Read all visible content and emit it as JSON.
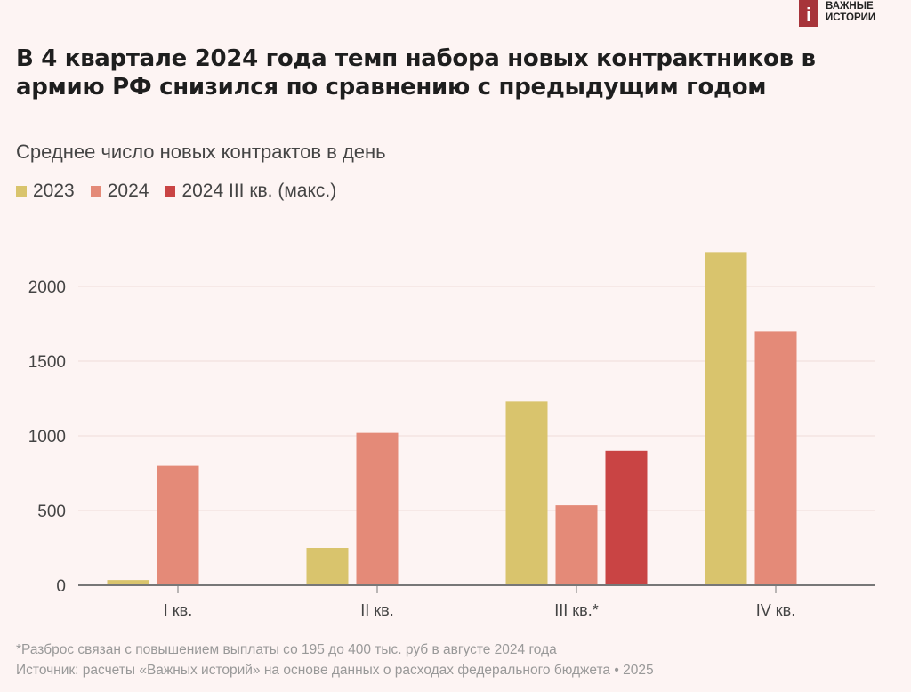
{
  "logo": {
    "mark": "i",
    "line1": "ВАЖНЫЕ",
    "line2": "ИСТОРИИ"
  },
  "colors": {
    "background": "#fdf4f3",
    "y2023": "#d9c46d",
    "y2024": "#e48a78",
    "y2024q3max": "#c94444",
    "grid": "#f3e4e2",
    "axis": "#777777"
  },
  "chart_data": {
    "type": "bar",
    "title": "В 4 квартале 2024 года темп набора новых контрактников в армию РФ снизился по сравнению с предыдущим годом",
    "subtitle": "Среднее число новых контрактов в день",
    "categories": [
      "I кв.",
      "II кв.",
      "III кв.*",
      "IV кв."
    ],
    "series": [
      {
        "name": "2023",
        "color": "#d9c46d",
        "values": [
          35,
          250,
          1230,
          2230
        ]
      },
      {
        "name": "2024",
        "color": "#e48a78",
        "values": [
          800,
          1020,
          535,
          1700
        ]
      },
      {
        "name": "2024 III кв. (макс.)",
        "color": "#c94444",
        "values": [
          null,
          null,
          900,
          null
        ]
      }
    ],
    "yticks": [
      0,
      500,
      1000,
      1500,
      2000
    ],
    "ylim": [
      0,
      2300
    ],
    "grid": true,
    "legend": "top-left"
  },
  "footer": {
    "note": "*Разброс связан с повышением выплаты со 195 до 400 тыс. руб в августе 2024 года",
    "source": "Источник: расчеты «Важных историй» на основе данных о расходах федерального бюджета • 2025"
  }
}
